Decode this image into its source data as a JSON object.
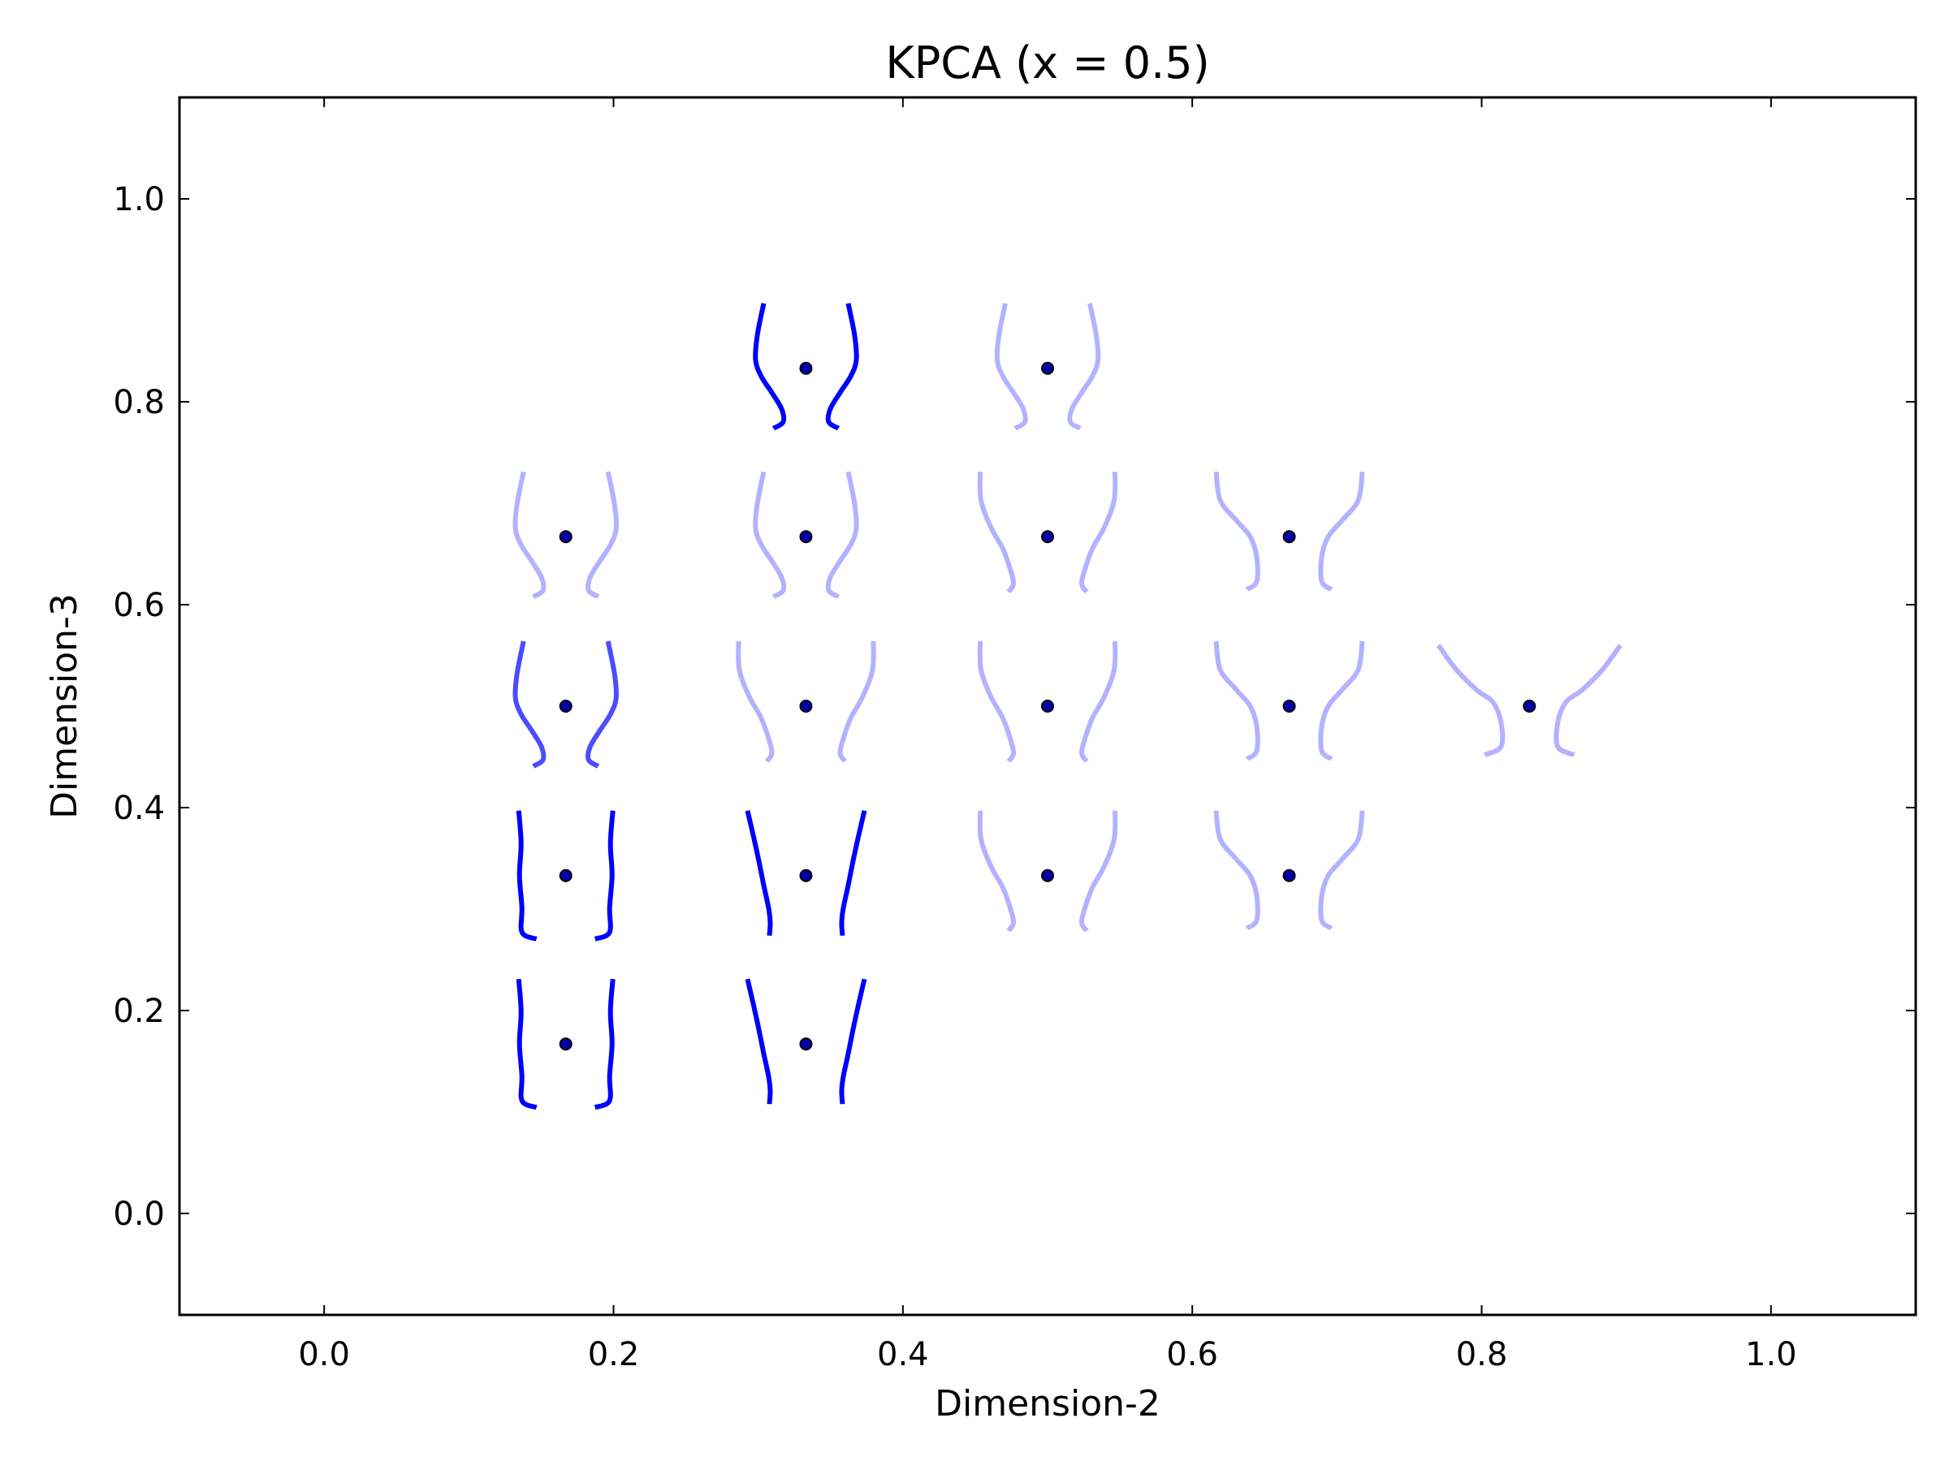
{
  "chart_data": {
    "type": "scatter",
    "title": "KPCA (x = 0.5)",
    "xlabel": "Dimension-2",
    "ylabel": "Dimension-3",
    "xlim": [
      -0.1,
      1.1
    ],
    "ylim": [
      -0.1,
      1.1
    ],
    "xticks": [
      "0.0",
      "0.2",
      "0.4",
      "0.6",
      "0.8",
      "1.0"
    ],
    "yticks": [
      "0.0",
      "0.2",
      "0.4",
      "0.6",
      "0.8",
      "1.0"
    ],
    "grid": false,
    "legend": "none",
    "colors": {
      "glyph": "#0000ff",
      "point": "#0000aa",
      "axes": "#000000"
    },
    "points": [
      {
        "x": 0.167,
        "y": 0.167,
        "opacity": 1.0,
        "shape": "straight"
      },
      {
        "x": 0.333,
        "y": 0.167,
        "opacity": 1.0,
        "shape": "narrow"
      },
      {
        "x": 0.167,
        "y": 0.333,
        "opacity": 1.0,
        "shape": "straight"
      },
      {
        "x": 0.333,
        "y": 0.333,
        "opacity": 1.0,
        "shape": "narrow"
      },
      {
        "x": 0.5,
        "y": 0.333,
        "opacity": 0.3,
        "shape": "vase"
      },
      {
        "x": 0.667,
        "y": 0.333,
        "opacity": 0.3,
        "shape": "flared"
      },
      {
        "x": 0.167,
        "y": 0.5,
        "opacity": 0.7,
        "shape": "bulge"
      },
      {
        "x": 0.333,
        "y": 0.5,
        "opacity": 0.3,
        "shape": "vase"
      },
      {
        "x": 0.5,
        "y": 0.5,
        "opacity": 0.3,
        "shape": "vase"
      },
      {
        "x": 0.667,
        "y": 0.5,
        "opacity": 0.3,
        "shape": "flared"
      },
      {
        "x": 0.833,
        "y": 0.5,
        "opacity": 0.3,
        "shape": "wide"
      },
      {
        "x": 0.167,
        "y": 0.667,
        "opacity": 0.3,
        "shape": "bulge"
      },
      {
        "x": 0.333,
        "y": 0.667,
        "opacity": 0.3,
        "shape": "bulge"
      },
      {
        "x": 0.5,
        "y": 0.667,
        "opacity": 0.3,
        "shape": "vase"
      },
      {
        "x": 0.667,
        "y": 0.667,
        "opacity": 0.3,
        "shape": "flared"
      },
      {
        "x": 0.333,
        "y": 0.833,
        "opacity": 1.0,
        "shape": "bulge"
      },
      {
        "x": 0.5,
        "y": 0.833,
        "opacity": 0.3,
        "shape": "bulge"
      }
    ]
  }
}
